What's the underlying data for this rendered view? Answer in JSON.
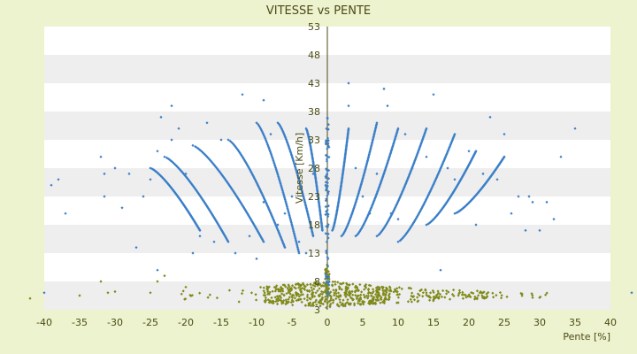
{
  "chart_data": {
    "type": "scatter",
    "title": "VITESSE vs PENTE",
    "xlabel": "Pente [%]",
    "ylabel": "Vitesse [Km/h]",
    "xlim": [
      -40,
      40
    ],
    "ylim": [
      3,
      53
    ],
    "x_ticks": [
      -40,
      -35,
      -30,
      -25,
      -20,
      -15,
      -10,
      -5,
      0,
      5,
      10,
      15,
      20,
      25,
      30,
      35,
      40
    ],
    "y_ticks": [
      3,
      8,
      13,
      18,
      23,
      28,
      33,
      38,
      43,
      48,
      53
    ],
    "grid": "horizontal alternating bands",
    "legend": "none",
    "colors": {
      "background": "#edf2cf",
      "plot_band_light": "#ffffff",
      "plot_band_dark": "#eeeeee",
      "axis": "#4b4b14",
      "series_blue": "#3b7fc8",
      "series_olive": "#7f8a1a"
    },
    "series": [
      {
        "color": "#3b7fc8",
        "shape": "diamond",
        "description_points": "scattered blue points",
        "points": [
          [
            -40,
            6
          ],
          [
            -39,
            25
          ],
          [
            -38,
            26
          ],
          [
            -37,
            20
          ],
          [
            -32,
            30
          ],
          [
            -31.5,
            27
          ],
          [
            -31.5,
            23
          ],
          [
            -30,
            28
          ],
          [
            -29,
            21
          ],
          [
            -28,
            27
          ],
          [
            -27,
            14
          ],
          [
            -26,
            23
          ],
          [
            -25,
            26
          ],
          [
            -24,
            31
          ],
          [
            -24,
            10
          ],
          [
            -23.5,
            37
          ],
          [
            -22,
            39
          ],
          [
            -22,
            33
          ],
          [
            -21,
            35
          ],
          [
            -20,
            27
          ],
          [
            -19,
            13
          ],
          [
            -18,
            16
          ],
          [
            -17,
            36
          ],
          [
            -16,
            15
          ],
          [
            -15,
            33
          ],
          [
            -13,
            13
          ],
          [
            -12,
            41
          ],
          [
            -11,
            16
          ],
          [
            -10,
            12
          ],
          [
            -9,
            40
          ],
          [
            -9,
            22
          ],
          [
            -8,
            34
          ],
          [
            -7,
            18
          ],
          [
            -6,
            20
          ],
          [
            -5,
            23
          ],
          [
            -4,
            15
          ],
          [
            -3,
            13
          ],
          [
            -2,
            27
          ],
          [
            3,
            43
          ],
          [
            3,
            39
          ],
          [
            4,
            28
          ],
          [
            5,
            23
          ],
          [
            6,
            20
          ],
          [
            7,
            27
          ],
          [
            8,
            42
          ],
          [
            8.5,
            39
          ],
          [
            9,
            20
          ],
          [
            10,
            19
          ],
          [
            11,
            34
          ],
          [
            12,
            28
          ],
          [
            14,
            30
          ],
          [
            15,
            41
          ],
          [
            16,
            10
          ],
          [
            17,
            28
          ],
          [
            18,
            26
          ],
          [
            20,
            31
          ],
          [
            21,
            18
          ],
          [
            22,
            27
          ],
          [
            23,
            37
          ],
          [
            24,
            26
          ],
          [
            25,
            30
          ],
          [
            25,
            34
          ],
          [
            26,
            20
          ],
          [
            27,
            23
          ],
          [
            28,
            17
          ],
          [
            28.5,
            23
          ],
          [
            29,
            22
          ],
          [
            30,
            17
          ],
          [
            31,
            22
          ],
          [
            32,
            19
          ],
          [
            33,
            30
          ],
          [
            35,
            35
          ],
          [
            43,
            6
          ]
        ]
      },
      {
        "color": "#3b7fc8",
        "shape": "diamond",
        "label": "",
        "curves": [
          {
            "x_start": -3,
            "x_end": -0.7,
            "y_start": 35,
            "y_end": 17
          },
          {
            "x_start": -7,
            "x_end": -2,
            "y_start": 36,
            "y_end": 16
          },
          {
            "x_start": -10,
            "x_end": -4,
            "y_start": 36,
            "y_end": 13
          },
          {
            "x_start": -14,
            "x_end": -6,
            "y_start": 33,
            "y_end": 14
          },
          {
            "x_start": -19,
            "x_end": -9,
            "y_start": 32,
            "y_end": 15
          },
          {
            "x_start": -23,
            "x_end": -14,
            "y_start": 30,
            "y_end": 15
          },
          {
            "x_start": -25,
            "x_end": -18,
            "y_start": 28,
            "y_end": 17
          },
          {
            "x_start": 0.7,
            "x_end": 3,
            "y_start": 17,
            "y_end": 35
          },
          {
            "x_start": 2,
            "x_end": 7,
            "y_start": 16,
            "y_end": 36
          },
          {
            "x_start": 4,
            "x_end": 10,
            "y_start": 16,
            "y_end": 35
          },
          {
            "x_start": 7,
            "x_end": 14,
            "y_start": 16,
            "y_end": 35
          },
          {
            "x_start": 10,
            "x_end": 18,
            "y_start": 15,
            "y_end": 34
          },
          {
            "x_start": 14,
            "x_end": 21,
            "y_start": 18,
            "y_end": 31
          },
          {
            "x_start": 18,
            "x_end": 25,
            "y_start": 20,
            "y_end": 30
          }
        ],
        "vertical_cluster": {
          "x": 0,
          "y_min": 5,
          "y_max": 37
        }
      },
      {
        "color": "#7f8a1a",
        "shape": "diamond",
        "label": "",
        "cluster": {
          "x_min": -21,
          "x_max": 33,
          "y_center": 6,
          "y_spread": 3.5,
          "density": "dense near 0"
        },
        "points": [
          [
            -42,
            5
          ],
          [
            -35,
            5.5
          ],
          [
            -32,
            8
          ],
          [
            -31,
            6
          ],
          [
            -30,
            6.2
          ],
          [
            -25,
            6
          ],
          [
            -24,
            8
          ],
          [
            -23,
            9
          ],
          [
            -20,
            7
          ]
        ]
      }
    ]
  }
}
